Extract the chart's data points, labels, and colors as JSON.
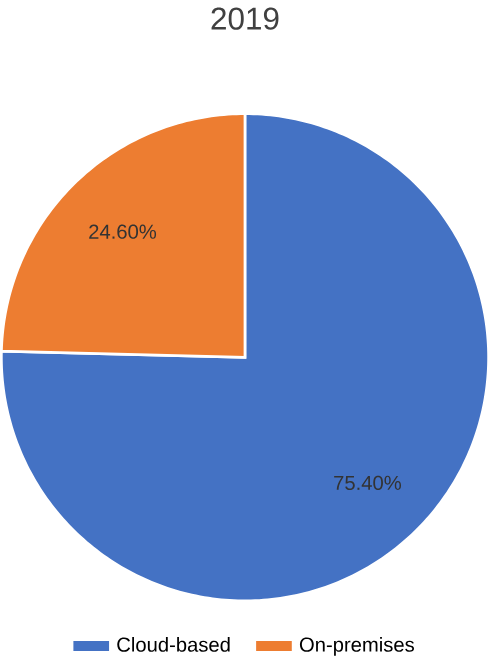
{
  "chart_data": {
    "type": "pie",
    "title": "2019",
    "categories": [
      "Cloud-based",
      "On-premises"
    ],
    "values": [
      75.4,
      24.6
    ],
    "colors": [
      "#4472c4",
      "#ed7d31"
    ],
    "value_labels": [
      "75.40%",
      "24.60%"
    ],
    "legend": "bottom"
  }
}
